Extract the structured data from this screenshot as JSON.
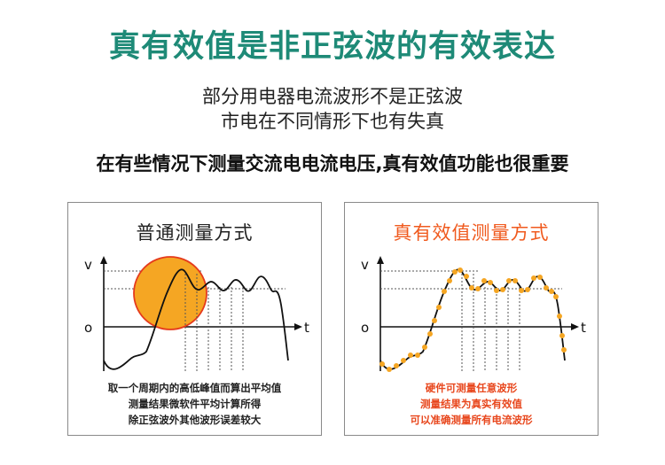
{
  "title": "真有效值是非正弦波的有效表达",
  "subtitle": [
    "部分用电器电流波形不是正弦波",
    "市电在不同情形下也有失真"
  ],
  "emphasis": "在有些情况下测量交流电电流电压,真有效值功能也很重要",
  "left_panel": {
    "title": "普通测量方式",
    "axis_v": "v",
    "axis_o": "o",
    "axis_t": "t",
    "description": [
      "取一个周期内的高低峰值而算出平均值",
      "测量结果微软件平均计算所得",
      "除正弦波外其他波形误差较大"
    ],
    "circle_color": "#f5a623",
    "circle_border": "#e53a1c"
  },
  "right_panel": {
    "title": "真有效值测量方式",
    "axis_v": "v",
    "axis_o": "o",
    "axis_t": "t",
    "description": [
      "硬件可测量任意波形",
      "测量结果为真实有效值",
      "可以准确测量所有电流波形"
    ],
    "dot_color": "#f5a623"
  },
  "colors": {
    "title": "#1e8a77",
    "right_title": "#f05a1e"
  }
}
